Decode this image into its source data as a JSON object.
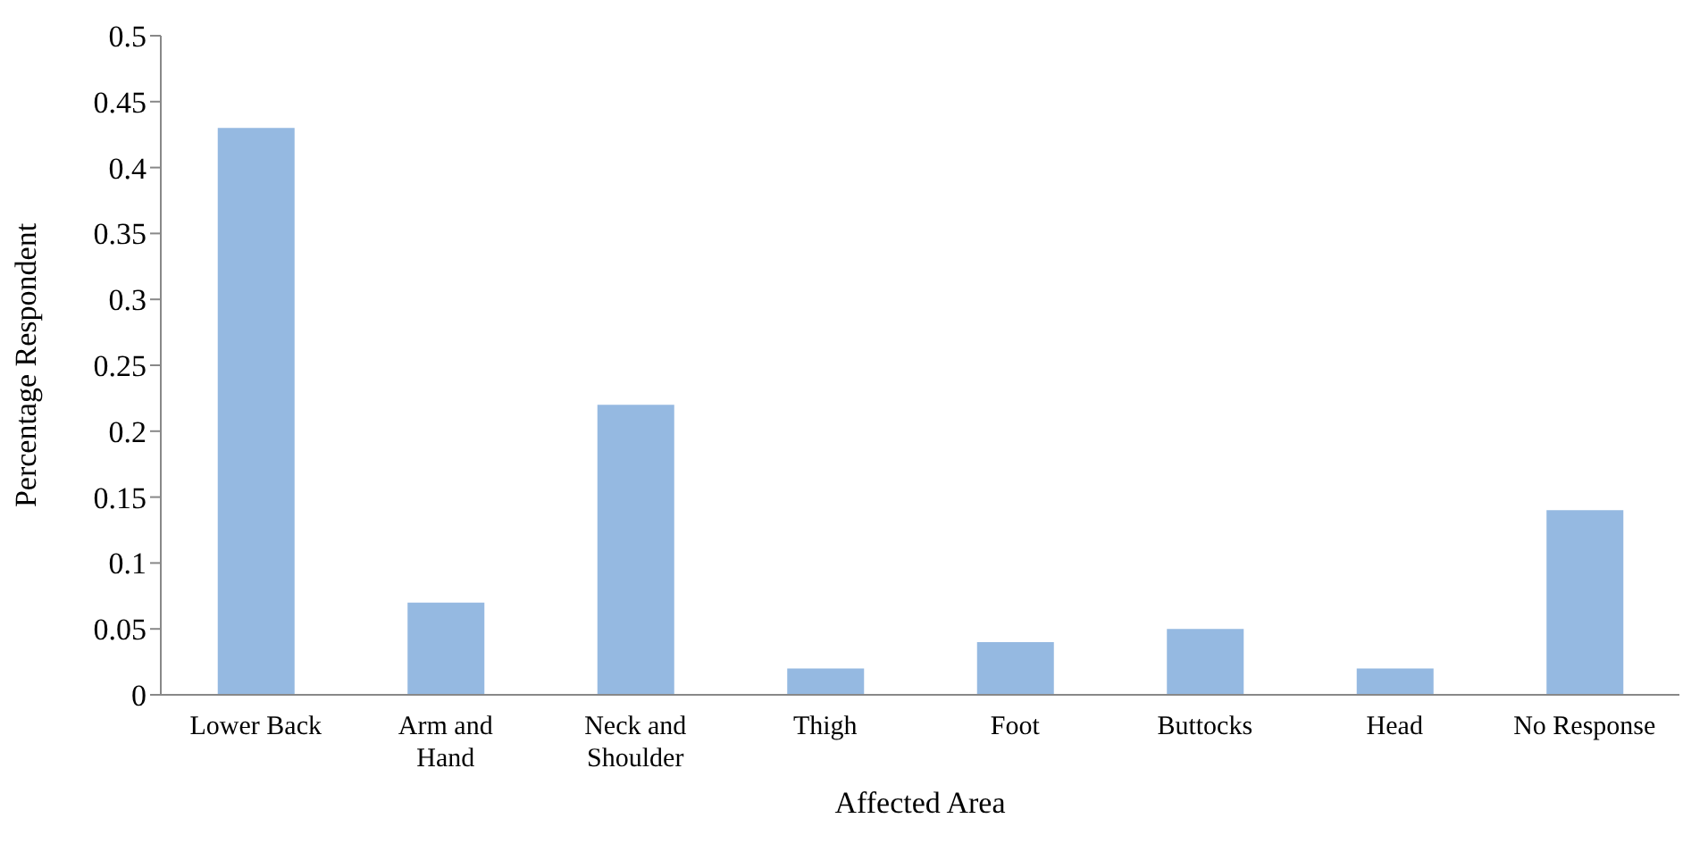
{
  "chart_data": {
    "type": "bar",
    "xlabel": "Affected Area",
    "ylabel": "Percentage Respondent",
    "categories": [
      "Lower Back",
      "Arm and Hand",
      "Neck and Shoulder",
      "Thigh",
      "Foot",
      "Buttocks",
      "Head",
      "No Response"
    ],
    "values": [
      0.43,
      0.07,
      0.22,
      0.02,
      0.04,
      0.05,
      0.02,
      0.14
    ],
    "color": "#95b9e1",
    "ylim": [
      0,
      0.5
    ],
    "yticks": [
      0,
      0.05,
      0.1,
      0.15,
      0.2,
      0.25,
      0.3,
      0.35,
      0.4,
      0.45,
      0.5
    ],
    "grid": false
  }
}
